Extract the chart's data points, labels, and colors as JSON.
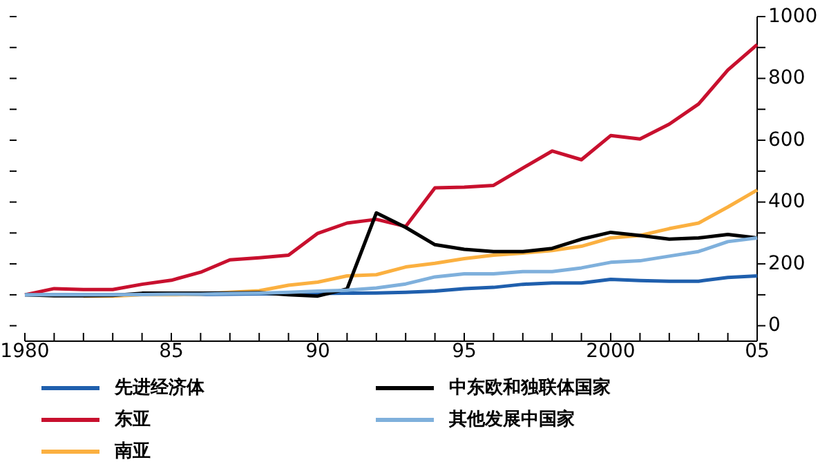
{
  "chart_data": {
    "type": "line",
    "x": [
      1980,
      1981,
      1982,
      1983,
      1984,
      1985,
      1986,
      1987,
      1988,
      1989,
      1990,
      1991,
      1992,
      1993,
      1994,
      1995,
      1996,
      1997,
      1998,
      1999,
      2000,
      2001,
      2002,
      2003,
      2004,
      2005
    ],
    "xlim": [
      1980,
      2005
    ],
    "xticks": [
      {
        "value": 1980,
        "label": "1980"
      },
      {
        "value": 1981,
        "label": null
      },
      {
        "value": 1982,
        "label": null
      },
      {
        "value": 1983,
        "label": null
      },
      {
        "value": 1984,
        "label": null
      },
      {
        "value": 1985,
        "label": "85"
      },
      {
        "value": 1986,
        "label": null
      },
      {
        "value": 1987,
        "label": null
      },
      {
        "value": 1988,
        "label": null
      },
      {
        "value": 1989,
        "label": null
      },
      {
        "value": 1990,
        "label": "90"
      },
      {
        "value": 1991,
        "label": null
      },
      {
        "value": 1992,
        "label": null
      },
      {
        "value": 1993,
        "label": null
      },
      {
        "value": 1994,
        "label": null
      },
      {
        "value": 1995,
        "label": "95"
      },
      {
        "value": 1996,
        "label": null
      },
      {
        "value": 1997,
        "label": null
      },
      {
        "value": 1998,
        "label": null
      },
      {
        "value": 1999,
        "label": null
      },
      {
        "value": 2000,
        "label": "2000"
      },
      {
        "value": 2001,
        "label": null
      },
      {
        "value": 2002,
        "label": null
      },
      {
        "value": 2003,
        "label": null
      },
      {
        "value": 2004,
        "label": null
      },
      {
        "value": 2005,
        "label": "05"
      }
    ],
    "ylim": [
      -50,
      1000
    ],
    "yticks": [
      0,
      {
        "value": 100,
        "label": null
      },
      200,
      {
        "value": 300,
        "label": null
      },
      400,
      {
        "value": 500,
        "label": null
      },
      600,
      {
        "value": 700,
        "label": null
      },
      800,
      {
        "value": 900,
        "label": null
      },
      1000
    ],
    "grid": false,
    "legend": "bottom",
    "series": [
      {
        "name": "先进经济体",
        "color": "#1f5fad",
        "values": [
          100,
          100,
          100,
          100,
          101,
          101,
          101,
          102,
          103,
          103,
          104,
          105,
          106,
          108,
          112,
          120,
          124,
          134,
          138,
          138,
          150,
          146,
          144,
          144,
          156,
          161
        ]
      },
      {
        "name": "东亚",
        "color": "#c8102e",
        "values": [
          100,
          120,
          117,
          117,
          134,
          147,
          173,
          213,
          220,
          228,
          299,
          332,
          344,
          321,
          446,
          448,
          454,
          510,
          565,
          537,
          615,
          604,
          652,
          717,
          827,
          909
        ]
      },
      {
        "name": "南亚",
        "color": "#fbb040",
        "values": [
          null,
          null,
          96,
          96,
          100,
          100,
          102,
          108,
          113,
          131,
          141,
          161,
          165,
          190,
          202,
          217,
          228,
          235,
          243,
          257,
          284,
          292,
          314,
          332,
          384,
          439
        ]
      },
      {
        "name": "中东欧和独联体国家",
        "color": "#000000",
        "values": [
          100,
          97,
          97,
          98,
          105,
          105,
          105,
          106,
          107,
          100,
          96,
          119,
          365,
          318,
          262,
          247,
          240,
          240,
          250,
          280,
          302,
          292,
          280,
          284,
          295,
          284
        ]
      },
      {
        "name": "其他发展中国家",
        "color": "#7fb0dc",
        "values": [
          100,
          100,
          100,
          100,
          101,
          102,
          102,
          104,
          105,
          108,
          112,
          115,
          122,
          135,
          158,
          168,
          168,
          175,
          175,
          187,
          205,
          210,
          225,
          240,
          272,
          284
        ]
      }
    ]
  }
}
